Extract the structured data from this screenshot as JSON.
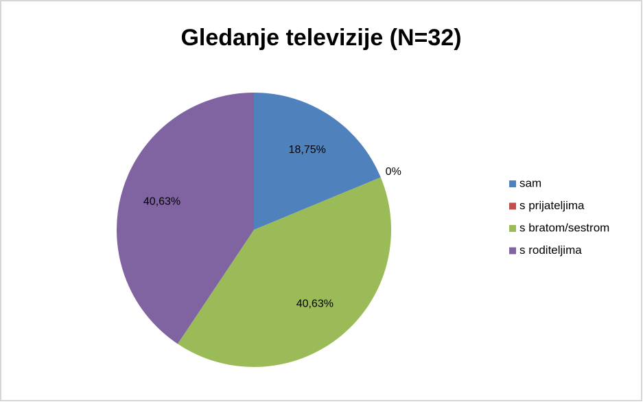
{
  "chart_data": {
    "type": "pie",
    "title": "Gledanje televizije (N=32)",
    "categories": [
      "sam",
      "s prijateljima",
      "s bratom/sestrom",
      "s roditeljima"
    ],
    "values": [
      18.75,
      0,
      40.63,
      40.63
    ],
    "value_labels": [
      "18,75%",
      "0%",
      "40,63%",
      "40,63%"
    ],
    "colors": [
      "#4f81bd",
      "#c0504d",
      "#9bbb59",
      "#8064a2"
    ],
    "legend": "right"
  }
}
